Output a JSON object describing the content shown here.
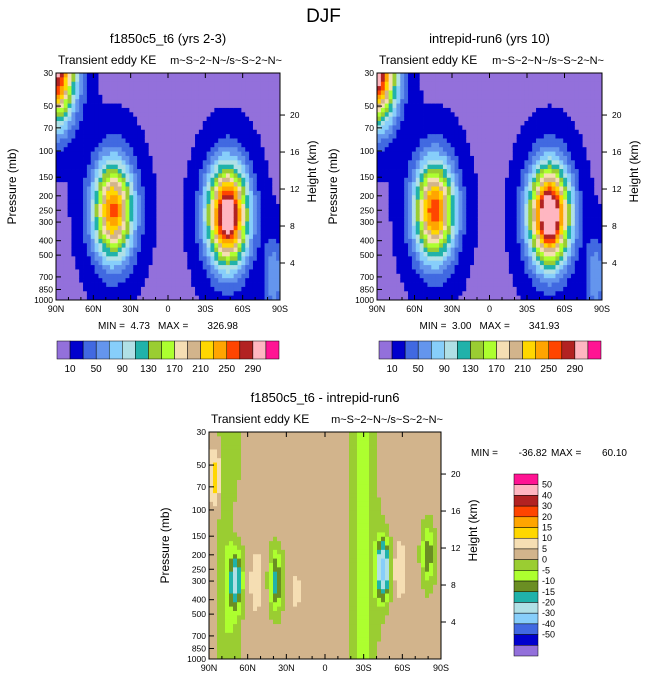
{
  "figure_title": "DJF",
  "chart_data": [
    {
      "type": "heatmap",
      "title": "f1850c5_t6 (yrs 2-3)",
      "subtitle_left": "Transient eddy KE",
      "subtitle_right": "m~S~2~N~/s~S~2~N~",
      "ylabel": "Pressure (mb)",
      "ylabel_right": "Height (km)",
      "x_ticks": [
        "90N",
        "60N",
        "30N",
        "0",
        "30S",
        "60S",
        "90S"
      ],
      "x_range": [
        90,
        -90
      ],
      "y_ticks": [
        "30",
        "50",
        "70",
        "100",
        "150",
        "200",
        "250",
        "300",
        "400",
        "500",
        "700",
        "850",
        "1000"
      ],
      "y_range_mb": [
        1000,
        30
      ],
      "height_ticks": [
        "4",
        "8",
        "12",
        "16",
        "20"
      ],
      "stats": {
        "min_label": "MIN =",
        "min": "4.73",
        "max_label": "MAX =",
        "max": "326.98"
      },
      "colorbar_labels": [
        "10",
        "50",
        "90",
        "130",
        "170",
        "210",
        "250",
        "290"
      ],
      "levels": [
        10,
        30,
        50,
        70,
        90,
        110,
        130,
        150,
        170,
        190,
        210,
        230,
        250,
        270,
        290
      ],
      "jets": [
        {
          "lat": 44,
          "p": 250,
          "peak": 250
        },
        {
          "lat": -48,
          "p": 270,
          "peak": 320
        },
        {
          "lat": 90,
          "p": 30,
          "peak": 250
        }
      ]
    },
    {
      "type": "heatmap",
      "title": "intrepid-run6 (yrs 10)",
      "subtitle_left": "Transient eddy KE",
      "subtitle_right": "m~S~2~N~/s~S~2~N~",
      "ylabel": "Pressure (mb)",
      "ylabel_right": "Height (km)",
      "x_ticks": [
        "90N",
        "60N",
        "30N",
        "0",
        "30S",
        "60S",
        "90S"
      ],
      "x_range": [
        90,
        -90
      ],
      "y_ticks": [
        "30",
        "50",
        "70",
        "100",
        "150",
        "200",
        "250",
        "300",
        "400",
        "500",
        "700",
        "850",
        "1000"
      ],
      "y_range_mb": [
        1000,
        30
      ],
      "height_ticks": [
        "4",
        "8",
        "12",
        "16",
        "20"
      ],
      "stats": {
        "min_label": "MIN =",
        "min": "3.00",
        "max_label": "MAX =",
        "max": "341.93"
      },
      "colorbar_labels": [
        "10",
        "50",
        "90",
        "130",
        "170",
        "210",
        "250",
        "290"
      ],
      "levels": [
        10,
        30,
        50,
        70,
        90,
        110,
        130,
        150,
        170,
        190,
        210,
        230,
        250,
        270,
        290
      ],
      "jets": [
        {
          "lat": 44,
          "p": 250,
          "peak": 260
        },
        {
          "lat": -48,
          "p": 270,
          "peak": 335
        },
        {
          "lat": 90,
          "p": 30,
          "peak": 260
        }
      ]
    },
    {
      "type": "heatmap",
      "title": "f1850c5_t6 - intrepid-run6",
      "subtitle_left": "Transient eddy KE",
      "subtitle_right": "m~S~2~N~/s~S~2~N~",
      "ylabel": "Pressure (mb)",
      "ylabel_right": "Height (km)",
      "x_ticks": [
        "90N",
        "60N",
        "30N",
        "0",
        "30S",
        "60S",
        "90S"
      ],
      "x_range": [
        90,
        -90
      ],
      "y_ticks": [
        "30",
        "50",
        "70",
        "100",
        "150",
        "200",
        "250",
        "300",
        "400",
        "500",
        "700",
        "850",
        "1000"
      ],
      "y_range_mb": [
        1000,
        30
      ],
      "height_ticks": [
        "4",
        "8",
        "12",
        "16",
        "20"
      ],
      "stats": {
        "min_label": "MIN =",
        "min": "-36.82",
        "max_label": "MAX =",
        "max": "60.10"
      },
      "colorbar_labels": [
        "50",
        "40",
        "30",
        "20",
        "15",
        "10",
        "5",
        "0",
        "-5",
        "-10",
        "-15",
        "-20",
        "-30",
        "-40",
        "-50"
      ],
      "levels": [
        50,
        40,
        30,
        20,
        15,
        10,
        5,
        0,
        -5,
        -10,
        -15,
        -20,
        -30,
        -40,
        -50
      ],
      "anomalies": [
        {
          "lat": 69,
          "p": 300,
          "val": -22
        },
        {
          "lat": 53,
          "p": 300,
          "val": 8
        },
        {
          "lat": 38,
          "p": 300,
          "val": -20
        },
        {
          "lat": 22,
          "p": 350,
          "val": 4
        },
        {
          "lat": -45,
          "p": 250,
          "val": -36
        },
        {
          "lat": -58,
          "p": 250,
          "val": 8
        },
        {
          "lat": -80,
          "p": 200,
          "val": -16
        },
        {
          "lat": 85,
          "p": 60,
          "val": 12
        },
        {
          "lat": 70,
          "p": 120,
          "val": 4
        }
      ]
    }
  ],
  "seq_colors": [
    "#9370DB",
    "#0000CD",
    "#4169E1",
    "#6495ED",
    "#87CEFA",
    "#B0E0E6",
    "#20B2AA",
    "#9ACD32",
    "#ADFF2F",
    "#F5DEB3",
    "#D2B48C",
    "#FFD700",
    "#FFA500",
    "#FF4500",
    "#B22222",
    "#FFB6C1",
    "#FF1493"
  ],
  "div_colors": [
    "#FF1493",
    "#FFB6C1",
    "#B22222",
    "#FF4500",
    "#FFA500",
    "#FFD700",
    "#F5DEB3",
    "#D2B48C",
    "#9ACD32",
    "#ADFF2F",
    "#6B8E23",
    "#20B2AA",
    "#B0E0E6",
    "#87CEFA",
    "#4169E1",
    "#0000CD",
    "#9370DB"
  ]
}
